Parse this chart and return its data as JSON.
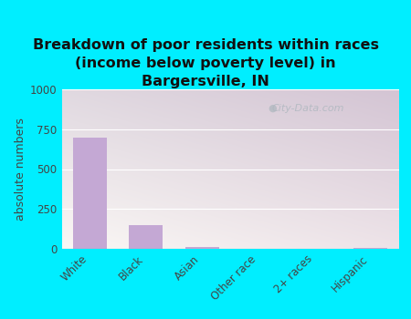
{
  "title": "Breakdown of poor residents within races\n(income below poverty level) in\nBargersville, IN",
  "categories": [
    "White",
    "Black",
    "Asian",
    "Other race",
    "2+ races",
    "Hispanic"
  ],
  "values": [
    700,
    150,
    10,
    0,
    0,
    5
  ],
  "bar_color": "#c4a8d4",
  "ylabel": "absolute numbers",
  "ylim": [
    0,
    1000
  ],
  "yticks": [
    0,
    250,
    500,
    750,
    1000
  ],
  "background_outer": "#00eeff",
  "bg_color_topleft": "#d8f0d8",
  "bg_color_topright": "#f0faf8",
  "bg_color_bottomleft": "#e8f8e0",
  "bg_color_bottomright": "#f8fff8",
  "watermark": "City-Data.com",
  "title_fontsize": 11.5,
  "ylabel_fontsize": 9,
  "tick_fontsize": 8.5
}
